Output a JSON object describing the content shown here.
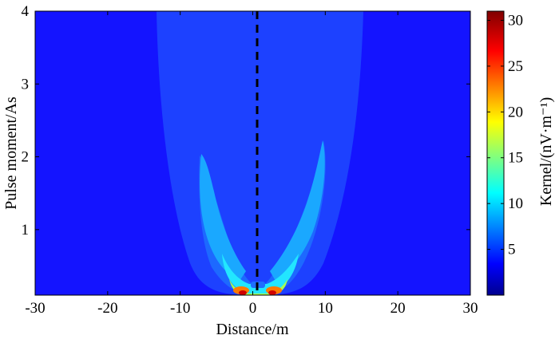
{
  "chart_data": {
    "type": "heatmap",
    "xlabel": "Distance/m",
    "ylabel": "Pulse moment/As",
    "xlim": [
      -30,
      30
    ],
    "ylim": [
      0.1,
      4
    ],
    "xticks": [
      -30,
      -20,
      -10,
      0,
      10,
      20,
      30
    ],
    "yticks": [
      1,
      2,
      3,
      4
    ],
    "colorbar": {
      "label": "Kernel/(nV·m⁻¹)",
      "range": [
        0,
        31
      ],
      "ticks": [
        5,
        10,
        15,
        20,
        25,
        30
      ],
      "colormap": "jet"
    },
    "reference_line": {
      "x": 0,
      "style": "dashed",
      "color": "#000000"
    },
    "regions": [
      {
        "level": 1.5,
        "description_free": true,
        "left_top": [
          -16,
          4.0
        ],
        "right_top": [
          15,
          4.0
        ],
        "left_mid": [
          -10,
          1.0
        ],
        "right_mid": [
          10,
          1.0
        ],
        "bottom": [
          -7,
          7
        ]
      },
      {
        "level": 3
      },
      {
        "level": 8
      },
      {
        "level": 12
      },
      {
        "level": 18
      },
      {
        "level": 26
      }
    ]
  },
  "colors": {
    "background": "#1414ff",
    "frame": "#000000"
  }
}
